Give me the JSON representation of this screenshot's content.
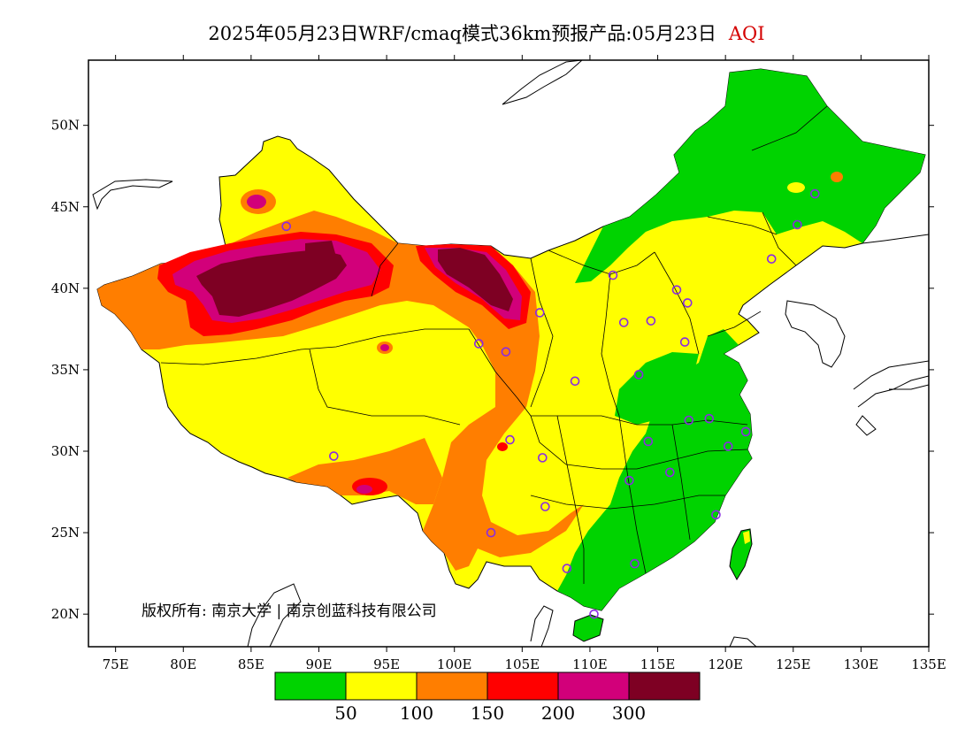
{
  "title": {
    "main": "2025年05月23日WRF/cmaq模式36km预报产品:05月23日",
    "variable": "AQI"
  },
  "map": {
    "lon_ticks": [
      "75E",
      "80E",
      "85E",
      "90E",
      "95E",
      "100E",
      "105E",
      "110E",
      "115E",
      "120E",
      "125E",
      "130E",
      "135E"
    ],
    "lat_ticks": [
      "20N",
      "25N",
      "30N",
      "35N",
      "40N",
      "45N",
      "50N"
    ],
    "lon_range": [
      73,
      135
    ],
    "lat_range": [
      18,
      54
    ],
    "copyright": "版权所有: 南京大学 | 南京创蓝科技有限公司"
  },
  "colorbar": {
    "colors": [
      "#00d300",
      "#ffff00",
      "#ff7e00",
      "#ff0000",
      "#d2007a",
      "#7e0023"
    ],
    "labels": [
      "50",
      "100",
      "150",
      "200",
      "300"
    ]
  },
  "stations": [
    {
      "lon": 87.6,
      "lat": 43.8
    },
    {
      "lon": 91.1,
      "lat": 29.7
    },
    {
      "lon": 101.8,
      "lat": 36.6
    },
    {
      "lon": 103.8,
      "lat": 36.1
    },
    {
      "lon": 106.3,
      "lat": 38.5
    },
    {
      "lon": 104.1,
      "lat": 30.7
    },
    {
      "lon": 106.5,
      "lat": 29.6
    },
    {
      "lon": 106.7,
      "lat": 26.6
    },
    {
      "lon": 102.7,
      "lat": 25.0
    },
    {
      "lon": 108.9,
      "lat": 34.3
    },
    {
      "lon": 111.7,
      "lat": 40.8
    },
    {
      "lon": 112.5,
      "lat": 37.9
    },
    {
      "lon": 114.5,
      "lat": 38.0
    },
    {
      "lon": 116.4,
      "lat": 39.9
    },
    {
      "lon": 117.2,
      "lat": 39.1
    },
    {
      "lon": 117.0,
      "lat": 36.7
    },
    {
      "lon": 113.6,
      "lat": 34.7
    },
    {
      "lon": 117.3,
      "lat": 31.9
    },
    {
      "lon": 118.8,
      "lat": 32.0
    },
    {
      "lon": 121.5,
      "lat": 31.2
    },
    {
      "lon": 120.2,
      "lat": 30.3
    },
    {
      "lon": 114.3,
      "lat": 30.6
    },
    {
      "lon": 115.9,
      "lat": 28.7
    },
    {
      "lon": 112.9,
      "lat": 28.2
    },
    {
      "lon": 119.3,
      "lat": 26.1
    },
    {
      "lon": 113.3,
      "lat": 23.1
    },
    {
      "lon": 108.3,
      "lat": 22.8
    },
    {
      "lon": 110.3,
      "lat": 20.0
    },
    {
      "lon": 123.4,
      "lat": 41.8
    },
    {
      "lon": 125.3,
      "lat": 43.9
    },
    {
      "lon": 126.6,
      "lat": 45.8
    }
  ]
}
